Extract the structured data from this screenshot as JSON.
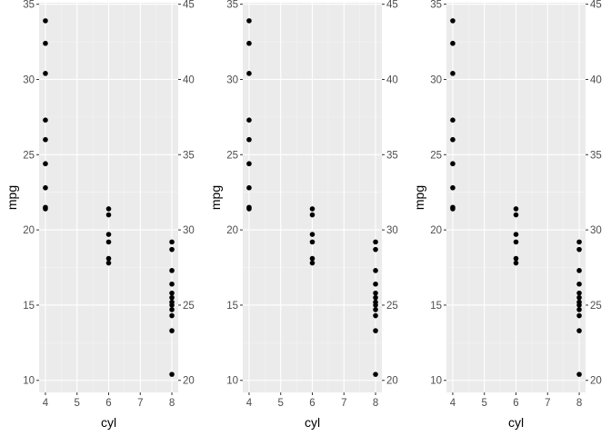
{
  "chart_data": [
    {
      "type": "scatter",
      "xlabel": "cyl",
      "ylabel": "mpg",
      "xlim": [
        3.8,
        8.2
      ],
      "ylim": [
        9.2,
        35.1
      ],
      "xticks": [
        4,
        5,
        6,
        7,
        8
      ],
      "yticks": [
        10,
        15,
        20,
        25,
        30,
        35
      ],
      "y2lim": [
        19.2,
        45.1
      ],
      "y2ticks": [
        20,
        25,
        30,
        35,
        40,
        45
      ],
      "grid": true,
      "points": [
        {
          "x": 4,
          "y": 33.9
        },
        {
          "x": 4,
          "y": 32.4
        },
        {
          "x": 4,
          "y": 30.4
        },
        {
          "x": 4,
          "y": 27.3
        },
        {
          "x": 4,
          "y": 26.0
        },
        {
          "x": 4,
          "y": 24.4
        },
        {
          "x": 4,
          "y": 22.8
        },
        {
          "x": 4,
          "y": 21.5
        },
        {
          "x": 4,
          "y": 21.4
        },
        {
          "x": 6,
          "y": 21.4
        },
        {
          "x": 6,
          "y": 21.0
        },
        {
          "x": 6,
          "y": 19.7
        },
        {
          "x": 6,
          "y": 19.2
        },
        {
          "x": 6,
          "y": 18.1
        },
        {
          "x": 6,
          "y": 17.8
        },
        {
          "x": 8,
          "y": 19.2
        },
        {
          "x": 8,
          "y": 18.7
        },
        {
          "x": 8,
          "y": 17.3
        },
        {
          "x": 8,
          "y": 16.4
        },
        {
          "x": 8,
          "y": 15.8
        },
        {
          "x": 8,
          "y": 15.5
        },
        {
          "x": 8,
          "y": 15.2
        },
        {
          "x": 8,
          "y": 15.0
        },
        {
          "x": 8,
          "y": 14.7
        },
        {
          "x": 8,
          "y": 14.3
        },
        {
          "x": 8,
          "y": 13.3
        },
        {
          "x": 8,
          "y": 10.4
        }
      ]
    },
    {
      "type": "scatter",
      "xlabel": "cyl",
      "ylabel": "mpg",
      "xlim": [
        3.8,
        8.2
      ],
      "ylim": [
        9.2,
        35.1
      ],
      "xticks": [
        4,
        5,
        6,
        7,
        8
      ],
      "yticks": [
        10,
        15,
        20,
        25,
        30,
        35
      ],
      "y2lim": [
        19.2,
        45.1
      ],
      "y2ticks": [
        20,
        25,
        30,
        35,
        40,
        45
      ],
      "grid": true,
      "points": [
        {
          "x": 4,
          "y": 33.9
        },
        {
          "x": 4,
          "y": 32.4
        },
        {
          "x": 4,
          "y": 30.4
        },
        {
          "x": 4,
          "y": 27.3
        },
        {
          "x": 4,
          "y": 26.0
        },
        {
          "x": 4,
          "y": 24.4
        },
        {
          "x": 4,
          "y": 22.8
        },
        {
          "x": 4,
          "y": 21.5
        },
        {
          "x": 4,
          "y": 21.4
        },
        {
          "x": 6,
          "y": 21.4
        },
        {
          "x": 6,
          "y": 21.0
        },
        {
          "x": 6,
          "y": 19.7
        },
        {
          "x": 6,
          "y": 19.2
        },
        {
          "x": 6,
          "y": 18.1
        },
        {
          "x": 6,
          "y": 17.8
        },
        {
          "x": 8,
          "y": 19.2
        },
        {
          "x": 8,
          "y": 18.7
        },
        {
          "x": 8,
          "y": 17.3
        },
        {
          "x": 8,
          "y": 16.4
        },
        {
          "x": 8,
          "y": 15.8
        },
        {
          "x": 8,
          "y": 15.5
        },
        {
          "x": 8,
          "y": 15.2
        },
        {
          "x": 8,
          "y": 15.0
        },
        {
          "x": 8,
          "y": 14.7
        },
        {
          "x": 8,
          "y": 14.3
        },
        {
          "x": 8,
          "y": 13.3
        },
        {
          "x": 8,
          "y": 10.4
        }
      ]
    },
    {
      "type": "scatter",
      "xlabel": "cyl",
      "ylabel": "mpg",
      "xlim": [
        3.8,
        8.2
      ],
      "ylim": [
        9.2,
        35.1
      ],
      "xticks": [
        4,
        5,
        6,
        7,
        8
      ],
      "yticks": [
        10,
        15,
        20,
        25,
        30,
        35
      ],
      "y2lim": [
        19.2,
        45.1
      ],
      "y2ticks": [
        20,
        25,
        30,
        35,
        40,
        45
      ],
      "grid": true,
      "points": [
        {
          "x": 4,
          "y": 33.9
        },
        {
          "x": 4,
          "y": 32.4
        },
        {
          "x": 4,
          "y": 30.4
        },
        {
          "x": 4,
          "y": 27.3
        },
        {
          "x": 4,
          "y": 26.0
        },
        {
          "x": 4,
          "y": 24.4
        },
        {
          "x": 4,
          "y": 22.8
        },
        {
          "x": 4,
          "y": 21.5
        },
        {
          "x": 4,
          "y": 21.4
        },
        {
          "x": 6,
          "y": 21.4
        },
        {
          "x": 6,
          "y": 21.0
        },
        {
          "x": 6,
          "y": 19.7
        },
        {
          "x": 6,
          "y": 19.2
        },
        {
          "x": 6,
          "y": 18.1
        },
        {
          "x": 6,
          "y": 17.8
        },
        {
          "x": 8,
          "y": 19.2
        },
        {
          "x": 8,
          "y": 18.7
        },
        {
          "x": 8,
          "y": 17.3
        },
        {
          "x": 8,
          "y": 16.4
        },
        {
          "x": 8,
          "y": 15.8
        },
        {
          "x": 8,
          "y": 15.5
        },
        {
          "x": 8,
          "y": 15.2
        },
        {
          "x": 8,
          "y": 15.0
        },
        {
          "x": 8,
          "y": 14.7
        },
        {
          "x": 8,
          "y": 14.3
        },
        {
          "x": 8,
          "y": 13.3
        },
        {
          "x": 8,
          "y": 10.4
        }
      ]
    }
  ]
}
